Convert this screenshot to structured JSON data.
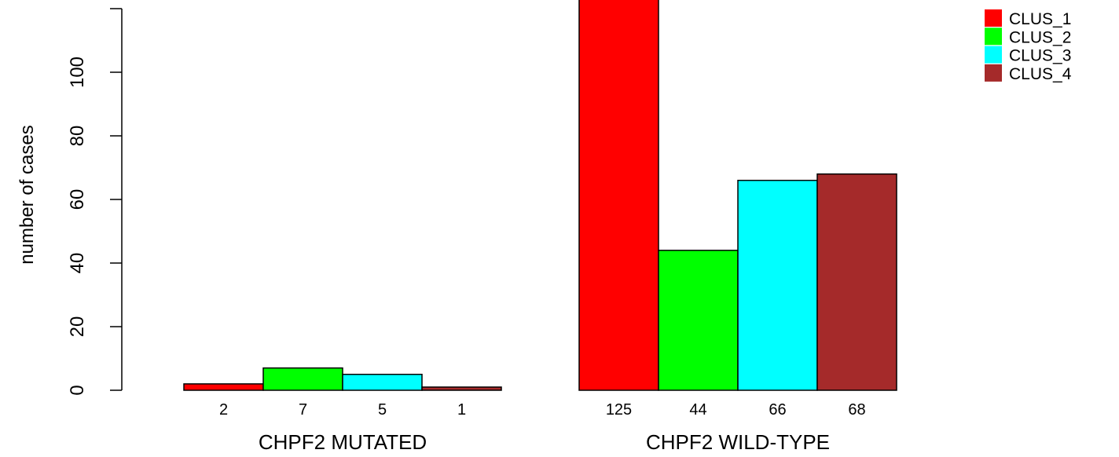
{
  "chart_data": {
    "type": "bar",
    "ylabel": "number of cases",
    "ylim": [
      0,
      120
    ],
    "yticks": [
      0,
      20,
      40,
      60,
      80,
      100
    ],
    "groups": [
      {
        "label": "CHPF2 MUTATED",
        "values": [
          2,
          7,
          5,
          1
        ],
        "value_labels": [
          "2",
          "7",
          "5",
          "1"
        ]
      },
      {
        "label": "CHPF2 WILD-TYPE",
        "values": [
          125,
          44,
          66,
          68
        ],
        "value_labels": [
          "125",
          "44",
          "66",
          "68"
        ]
      }
    ],
    "series": [
      {
        "name": "CLUS_1",
        "color": "#ff0000"
      },
      {
        "name": "CLUS_2",
        "color": "#00ff00"
      },
      {
        "name": "CLUS_3",
        "color": "#00ffff"
      },
      {
        "name": "CLUS_4",
        "color": "#a52a2a"
      }
    ],
    "legend_position": "top-right",
    "grid": false
  }
}
